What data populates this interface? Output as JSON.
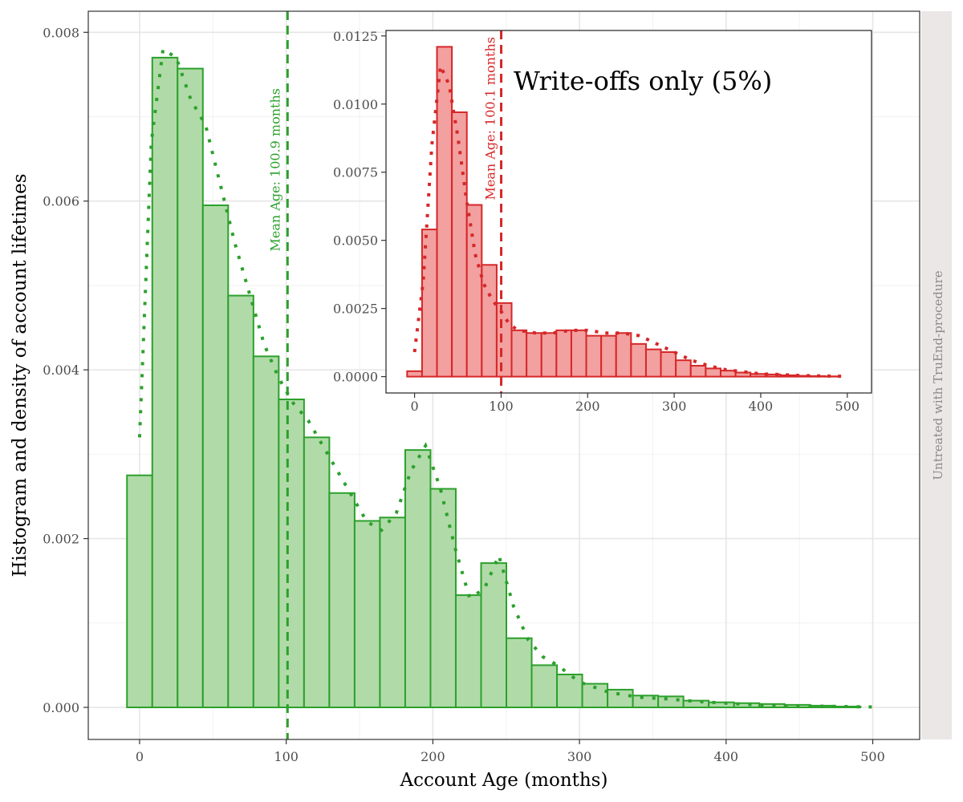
{
  "chart_data": [
    {
      "type": "bar",
      "title": "",
      "xlabel": "Account Age (months)",
      "ylabel": "Histogram and density of account lifetimes",
      "strip_label": "Untreated with TruEnd-procedure",
      "xlim": [
        -35,
        532
      ],
      "ylim": [
        -0.00038,
        0.00825
      ],
      "x_ticks": [
        0,
        100,
        200,
        300,
        400,
        500
      ],
      "y_ticks": [
        0.0,
        0.002,
        0.004,
        0.006,
        0.008
      ],
      "y_tick_labels": [
        "0.000",
        "0.002",
        "0.004",
        "0.006",
        "0.008"
      ],
      "x_tick_labels": [
        "0",
        "100",
        "200",
        "300",
        "400",
        "500"
      ],
      "grid": true,
      "colors": {
        "bar_fill": "#b0dba8",
        "bar_stroke": "#2ca02c",
        "mean_line": "#2ca02c",
        "density": "#2ca02c",
        "strip_bg": "#ebe7e6"
      },
      "bin_width": 17.25,
      "bin_start": -8.6,
      "values": [
        0.00275,
        0.0077,
        0.00757,
        0.00595,
        0.00488,
        0.00416,
        0.00365,
        0.0032,
        0.00254,
        0.00221,
        0.00225,
        0.00305,
        0.00259,
        0.00133,
        0.00171,
        0.00082,
        0.0005,
        0.00039,
        0.00028,
        0.00021,
        0.00014,
        0.00013,
        8e-05,
        6e-05,
        5e-05,
        4e-05,
        3e-05,
        2e-05,
        1e-05
      ],
      "density_x": [
        0,
        8,
        16,
        25,
        35,
        45,
        55,
        65,
        75,
        85,
        95,
        105,
        115,
        125,
        135,
        145,
        155,
        165,
        175,
        185,
        195,
        205,
        215,
        225,
        235,
        245,
        255,
        265,
        275,
        285,
        300,
        320,
        340,
        360,
        380,
        400,
        420,
        440,
        460,
        480,
        500
      ],
      "density_y": [
        0.0032,
        0.0067,
        0.0078,
        0.0077,
        0.0072,
        0.0069,
        0.0062,
        0.0055,
        0.0049,
        0.0043,
        0.0039,
        0.0036,
        0.0034,
        0.0031,
        0.0028,
        0.0025,
        0.0022,
        0.0021,
        0.0023,
        0.0028,
        0.0031,
        0.0026,
        0.0019,
        0.0013,
        0.0014,
        0.0018,
        0.0012,
        0.0008,
        0.0006,
        0.0005,
        0.0003,
        0.00018,
        0.00012,
        0.0001,
        7e-05,
        5e-05,
        3e-05,
        2e-05,
        1.5e-05,
        1e-05,
        5e-06
      ],
      "mean_value": 100.9,
      "mean_label": "Mean Age: 100.9 months"
    },
    {
      "type": "bar",
      "title": "Write-offs only (5%)",
      "xlabel": "",
      "ylabel": "",
      "xlim": [
        -33,
        528
      ],
      "ylim": [
        -0.0006,
        0.0127
      ],
      "x_ticks": [
        0,
        100,
        200,
        300,
        400,
        500
      ],
      "x_tick_labels": [
        "0",
        "100",
        "200",
        "300",
        "400",
        "500"
      ],
      "y_ticks": [
        0.0,
        0.0025,
        0.005,
        0.0075,
        0.01,
        0.0125
      ],
      "y_tick_labels": [
        "0.0000",
        "0.0025",
        "0.0050",
        "0.0075",
        "0.0100",
        "0.0125"
      ],
      "grid": false,
      "colors": {
        "bar_fill": "#f2a0a0",
        "bar_stroke": "#d62728",
        "mean_line": "#d62728",
        "density": "#d62728"
      },
      "bin_width": 17.25,
      "bin_start": -8.6,
      "values": [
        0.0002,
        0.0054,
        0.0121,
        0.0097,
        0.0063,
        0.0041,
        0.0027,
        0.0017,
        0.0016,
        0.0016,
        0.0017,
        0.0017,
        0.0015,
        0.0015,
        0.0016,
        0.0012,
        0.001,
        0.0009,
        0.0006,
        0.0004,
        0.0003,
        0.00022,
        0.00015,
        0.0001,
        8e-05,
        5e-05,
        3e-05,
        2e-05,
        1e-05
      ],
      "density_x": [
        0,
        10,
        20,
        30,
        40,
        50,
        60,
        70,
        80,
        90,
        100,
        110,
        120,
        140,
        160,
        180,
        200,
        220,
        240,
        260,
        280,
        300,
        320,
        340,
        360,
        380,
        400,
        420,
        440,
        460,
        480,
        500
      ],
      "density_y": [
        0.0009,
        0.0035,
        0.0085,
        0.0114,
        0.0107,
        0.0088,
        0.0065,
        0.0045,
        0.0034,
        0.0028,
        0.0024,
        0.0019,
        0.0017,
        0.0016,
        0.0016,
        0.0017,
        0.0017,
        0.0016,
        0.0016,
        0.0015,
        0.0012,
        0.0009,
        0.0006,
        0.0004,
        0.00025,
        0.00018,
        0.0001,
        8e-05,
        5e-05,
        3e-05,
        2e-05,
        1e-05
      ],
      "mean_value": 100.1,
      "mean_label": "Mean Age: 100.1 months"
    }
  ]
}
